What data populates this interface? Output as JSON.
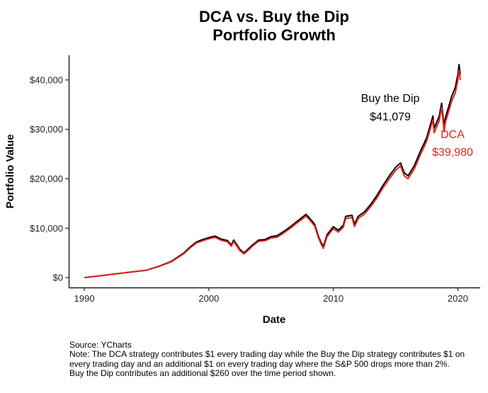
{
  "chart_data": {
    "type": "line",
    "title": [
      "DCA vs. Buy the Dip",
      "Portfolio Growth"
    ],
    "xlabel": "Date",
    "ylabel": "Portfolio Value",
    "xlim": [
      1988.8,
      2021.8
    ],
    "ylim": [
      -2000,
      45000
    ],
    "x_ticks": [
      1990,
      2000,
      2010,
      2020
    ],
    "x_tick_labels": [
      "1990",
      "2000",
      "2010",
      "2020"
    ],
    "y_ticks": [
      0,
      10000,
      20000,
      30000,
      40000
    ],
    "y_tick_labels": [
      "$0",
      "$10,000",
      "$20,000",
      "$30,000",
      "$40,000"
    ],
    "grid": false,
    "legend": "none",
    "series": [
      {
        "name": "Buy the Dip",
        "color": "#000000",
        "points": [
          [
            1990.0,
            0
          ],
          [
            1991.0,
            300
          ],
          [
            1992.0,
            600
          ],
          [
            1993.0,
            900
          ],
          [
            1994.0,
            1200
          ],
          [
            1995.0,
            1500
          ],
          [
            1996.0,
            2300
          ],
          [
            1997.0,
            3300
          ],
          [
            1998.0,
            5000
          ],
          [
            1998.5,
            6200
          ],
          [
            1999.0,
            7200
          ],
          [
            1999.5,
            7700
          ],
          [
            2000.0,
            8100
          ],
          [
            2000.5,
            8400
          ],
          [
            2001.0,
            7800
          ],
          [
            2001.5,
            7500
          ],
          [
            2001.8,
            6600
          ],
          [
            2002.0,
            7600
          ],
          [
            2002.5,
            5700
          ],
          [
            2002.8,
            5000
          ],
          [
            2003.0,
            5400
          ],
          [
            2003.5,
            6600
          ],
          [
            2004.0,
            7600
          ],
          [
            2004.5,
            7700
          ],
          [
            2005.0,
            8300
          ],
          [
            2005.5,
            8500
          ],
          [
            2006.0,
            9300
          ],
          [
            2006.5,
            10200
          ],
          [
            2007.0,
            11200
          ],
          [
            2007.5,
            12200
          ],
          [
            2007.8,
            12800
          ],
          [
            2008.0,
            12300
          ],
          [
            2008.5,
            10800
          ],
          [
            2008.8,
            8400
          ],
          [
            2009.0,
            7200
          ],
          [
            2009.2,
            6300
          ],
          [
            2009.5,
            8700
          ],
          [
            2010.0,
            10300
          ],
          [
            2010.4,
            9600
          ],
          [
            2010.8,
            10600
          ],
          [
            2011.0,
            12400
          ],
          [
            2011.5,
            12600
          ],
          [
            2011.7,
            10800
          ],
          [
            2012.0,
            12400
          ],
          [
            2012.5,
            13300
          ],
          [
            2013.0,
            14800
          ],
          [
            2013.5,
            16600
          ],
          [
            2014.0,
            18700
          ],
          [
            2014.5,
            20600
          ],
          [
            2015.0,
            22300
          ],
          [
            2015.4,
            23200
          ],
          [
            2015.7,
            21200
          ],
          [
            2016.0,
            20600
          ],
          [
            2016.5,
            22600
          ],
          [
            2017.0,
            25600
          ],
          [
            2017.5,
            28300
          ],
          [
            2018.0,
            32700
          ],
          [
            2018.1,
            30200
          ],
          [
            2018.5,
            32600
          ],
          [
            2018.7,
            35300
          ],
          [
            2018.9,
            30500
          ],
          [
            2019.0,
            32300
          ],
          [
            2019.5,
            36600
          ],
          [
            2019.8,
            38500
          ],
          [
            2020.0,
            41000
          ],
          [
            2020.1,
            43100
          ],
          [
            2020.2,
            41079
          ]
        ]
      },
      {
        "name": "DCA",
        "color": "#e1241d",
        "points": [
          [
            1990.0,
            0
          ],
          [
            1991.0,
            300
          ],
          [
            1992.0,
            600
          ],
          [
            1993.0,
            900
          ],
          [
            1994.0,
            1200
          ],
          [
            1995.0,
            1500
          ],
          [
            1996.0,
            2250
          ],
          [
            1997.0,
            3200
          ],
          [
            1998.0,
            4850
          ],
          [
            1998.5,
            6000
          ],
          [
            1999.0,
            7000
          ],
          [
            1999.5,
            7450
          ],
          [
            2000.0,
            7850
          ],
          [
            2000.5,
            8150
          ],
          [
            2001.0,
            7550
          ],
          [
            2001.5,
            7250
          ],
          [
            2001.8,
            6350
          ],
          [
            2002.0,
            7300
          ],
          [
            2002.5,
            5450
          ],
          [
            2002.8,
            4800
          ],
          [
            2003.0,
            5150
          ],
          [
            2003.5,
            6350
          ],
          [
            2004.0,
            7350
          ],
          [
            2004.5,
            7450
          ],
          [
            2005.0,
            8000
          ],
          [
            2005.5,
            8200
          ],
          [
            2006.0,
            9000
          ],
          [
            2006.5,
            9900
          ],
          [
            2007.0,
            10900
          ],
          [
            2007.5,
            11850
          ],
          [
            2007.8,
            12450
          ],
          [
            2008.0,
            11950
          ],
          [
            2008.5,
            10450
          ],
          [
            2008.8,
            8100
          ],
          [
            2009.0,
            6900
          ],
          [
            2009.2,
            5900
          ],
          [
            2009.5,
            8300
          ],
          [
            2010.0,
            9900
          ],
          [
            2010.4,
            9200
          ],
          [
            2010.8,
            10200
          ],
          [
            2011.0,
            11950
          ],
          [
            2011.5,
            12150
          ],
          [
            2011.7,
            10350
          ],
          [
            2012.0,
            11950
          ],
          [
            2012.5,
            12850
          ],
          [
            2013.0,
            14350
          ],
          [
            2013.5,
            16100
          ],
          [
            2014.0,
            18200
          ],
          [
            2014.5,
            20000
          ],
          [
            2015.0,
            21700
          ],
          [
            2015.4,
            22600
          ],
          [
            2015.7,
            20600
          ],
          [
            2016.0,
            20000
          ],
          [
            2016.5,
            21950
          ],
          [
            2017.0,
            24900
          ],
          [
            2017.5,
            27600
          ],
          [
            2018.0,
            31900
          ],
          [
            2018.1,
            29300
          ],
          [
            2018.5,
            31700
          ],
          [
            2018.7,
            34400
          ],
          [
            2018.9,
            29500
          ],
          [
            2019.0,
            31400
          ],
          [
            2019.5,
            35600
          ],
          [
            2019.8,
            37400
          ],
          [
            2020.0,
            39900
          ],
          [
            2020.1,
            42000
          ],
          [
            2020.2,
            39980
          ]
        ]
      }
    ],
    "annotations": [
      {
        "lines": [
          "Buy the Dip",
          "$41,079"
        ],
        "color": "#000000"
      },
      {
        "lines": [
          "DCA",
          "$39,980"
        ],
        "color": "#e1241d"
      }
    ]
  },
  "footnote": {
    "source": "Source:  YCharts",
    "note": "Note: The DCA strategy contributes $1 every trading day while the Buy the Dip strategy contributes $1 on every trading day and an additional $1 on every trading day where the S&P 500 drops more than 2%. Buy the Dip contributes an additional $260 over the time period shown."
  }
}
